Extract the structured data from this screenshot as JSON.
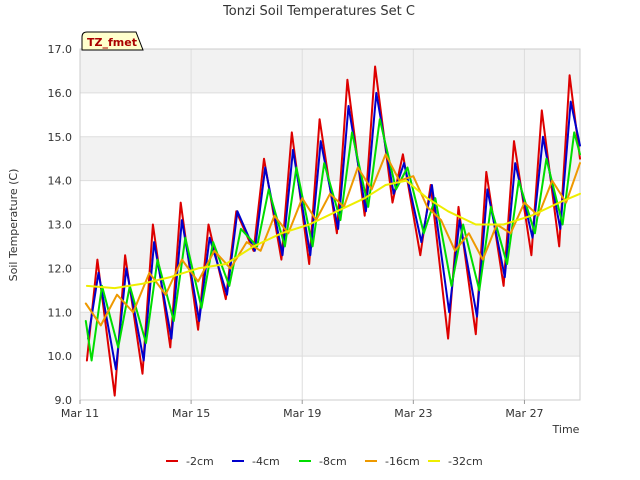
{
  "chart_data": {
    "type": "line",
    "title": "Tonzi Soil Temperatures Set C",
    "xlabel": "Time",
    "ylabel": "Soil Temperature (C)",
    "tag": "TZ_fmet",
    "xlim": [
      "2024-03-11",
      "2024-03-29"
    ],
    "ylim": [
      9.0,
      17.0
    ],
    "yticks": [
      9.0,
      10.0,
      11.0,
      12.0,
      13.0,
      14.0,
      15.0,
      16.0,
      17.0
    ],
    "xticks": [
      {
        "date": "2024-03-11",
        "label": "Mar 11"
      },
      {
        "date": "2024-03-15",
        "label": "Mar 15"
      },
      {
        "date": "2024-03-19",
        "label": "Mar 19"
      },
      {
        "date": "2024-03-23",
        "label": "Mar 23"
      },
      {
        "date": "2024-03-27",
        "label": "Mar 27"
      }
    ],
    "grid": true,
    "legend_position": "bottom",
    "series": [
      {
        "name": "-2cm",
        "color": "#dd0000",
        "points": [
          [
            "2024-03-11T06:00",
            9.9
          ],
          [
            "2024-03-11T15:00",
            12.2
          ],
          [
            "2024-03-12T06:00",
            9.1
          ],
          [
            "2024-03-12T15:00",
            12.3
          ],
          [
            "2024-03-13T06:00",
            9.6
          ],
          [
            "2024-03-13T15:00",
            13.0
          ],
          [
            "2024-03-14T06:00",
            10.2
          ],
          [
            "2024-03-14T15:00",
            13.5
          ],
          [
            "2024-03-15T06:00",
            10.6
          ],
          [
            "2024-03-15T15:00",
            13.0
          ],
          [
            "2024-03-16T06:00",
            11.3
          ],
          [
            "2024-03-16T15:00",
            13.3
          ],
          [
            "2024-03-17T06:00",
            12.4
          ],
          [
            "2024-03-17T15:00",
            14.5
          ],
          [
            "2024-03-18T06:00",
            12.2
          ],
          [
            "2024-03-18T15:00",
            15.1
          ],
          [
            "2024-03-19T06:00",
            12.1
          ],
          [
            "2024-03-19T15:00",
            15.4
          ],
          [
            "2024-03-20T06:00",
            12.8
          ],
          [
            "2024-03-20T15:00",
            16.3
          ],
          [
            "2024-03-21T06:00",
            13.2
          ],
          [
            "2024-03-21T15:00",
            16.6
          ],
          [
            "2024-03-22T06:00",
            13.5
          ],
          [
            "2024-03-22T15:00",
            14.6
          ],
          [
            "2024-03-23T06:00",
            12.3
          ],
          [
            "2024-03-23T15:00",
            13.9
          ],
          [
            "2024-03-24T06:00",
            10.4
          ],
          [
            "2024-03-24T15:00",
            13.4
          ],
          [
            "2024-03-25T06:00",
            10.5
          ],
          [
            "2024-03-25T15:00",
            14.2
          ],
          [
            "2024-03-26T06:00",
            11.6
          ],
          [
            "2024-03-26T15:00",
            14.9
          ],
          [
            "2024-03-27T06:00",
            12.3
          ],
          [
            "2024-03-27T15:00",
            15.6
          ],
          [
            "2024-03-28T06:00",
            12.5
          ],
          [
            "2024-03-28T15:00",
            16.4
          ],
          [
            "2024-03-29T00:00",
            14.5
          ]
        ]
      },
      {
        "name": "-4cm",
        "color": "#0000cc",
        "points": [
          [
            "2024-03-11T07:00",
            10.4
          ],
          [
            "2024-03-11T16:00",
            11.9
          ],
          [
            "2024-03-12T07:00",
            9.7
          ],
          [
            "2024-03-12T16:00",
            12.0
          ],
          [
            "2024-03-13T07:00",
            9.9
          ],
          [
            "2024-03-13T16:00",
            12.6
          ],
          [
            "2024-03-14T07:00",
            10.4
          ],
          [
            "2024-03-14T16:00",
            13.1
          ],
          [
            "2024-03-15T07:00",
            10.8
          ],
          [
            "2024-03-15T16:00",
            12.7
          ],
          [
            "2024-03-16T07:00",
            11.4
          ],
          [
            "2024-03-16T16:00",
            13.3
          ],
          [
            "2024-03-17T07:00",
            12.4
          ],
          [
            "2024-03-17T16:00",
            14.3
          ],
          [
            "2024-03-18T07:00",
            12.3
          ],
          [
            "2024-03-18T16:00",
            14.7
          ],
          [
            "2024-03-19T07:00",
            12.3
          ],
          [
            "2024-03-19T16:00",
            14.9
          ],
          [
            "2024-03-20T07:00",
            12.9
          ],
          [
            "2024-03-20T16:00",
            15.7
          ],
          [
            "2024-03-21T07:00",
            13.3
          ],
          [
            "2024-03-21T16:00",
            16.0
          ],
          [
            "2024-03-22T07:00",
            13.7
          ],
          [
            "2024-03-22T16:00",
            14.4
          ],
          [
            "2024-03-23T07:00",
            12.6
          ],
          [
            "2024-03-23T16:00",
            13.9
          ],
          [
            "2024-03-24T07:00",
            11.0
          ],
          [
            "2024-03-24T16:00",
            13.1
          ],
          [
            "2024-03-25T07:00",
            10.9
          ],
          [
            "2024-03-25T16:00",
            13.8
          ],
          [
            "2024-03-26T07:00",
            11.8
          ],
          [
            "2024-03-26T16:00",
            14.4
          ],
          [
            "2024-03-27T07:00",
            12.7
          ],
          [
            "2024-03-27T16:00",
            15.0
          ],
          [
            "2024-03-28T07:00",
            12.9
          ],
          [
            "2024-03-28T16:00",
            15.8
          ],
          [
            "2024-03-29T00:00",
            14.8
          ]
        ]
      },
      {
        "name": "-8cm",
        "color": "#00dd00",
        "points": [
          [
            "2024-03-11T05:00",
            10.8
          ],
          [
            "2024-03-11T10:00",
            9.9
          ],
          [
            "2024-03-11T19:00",
            11.6
          ],
          [
            "2024-03-12T09:00",
            10.2
          ],
          [
            "2024-03-12T19:00",
            11.6
          ],
          [
            "2024-03-13T09:00",
            10.3
          ],
          [
            "2024-03-13T19:00",
            12.2
          ],
          [
            "2024-03-14T09:00",
            10.8
          ],
          [
            "2024-03-14T19:00",
            12.7
          ],
          [
            "2024-03-15T09:00",
            11.1
          ],
          [
            "2024-03-15T19:00",
            12.6
          ],
          [
            "2024-03-16T09:00",
            11.6
          ],
          [
            "2024-03-16T19:00",
            12.9
          ],
          [
            "2024-03-17T09:00",
            12.5
          ],
          [
            "2024-03-17T19:00",
            13.8
          ],
          [
            "2024-03-18T09:00",
            12.5
          ],
          [
            "2024-03-18T19:00",
            14.3
          ],
          [
            "2024-03-19T09:00",
            12.5
          ],
          [
            "2024-03-19T19:00",
            14.4
          ],
          [
            "2024-03-20T09:00",
            13.1
          ],
          [
            "2024-03-20T19:00",
            15.1
          ],
          [
            "2024-03-21T09:00",
            13.4
          ],
          [
            "2024-03-21T19:00",
            15.4
          ],
          [
            "2024-03-22T09:00",
            13.8
          ],
          [
            "2024-03-22T19:00",
            14.3
          ],
          [
            "2024-03-23T09:00",
            12.8
          ],
          [
            "2024-03-23T19:00",
            13.6
          ],
          [
            "2024-03-24T09:00",
            11.6
          ],
          [
            "2024-03-24T19:00",
            13.0
          ],
          [
            "2024-03-25T09:00",
            11.5
          ],
          [
            "2024-03-25T19:00",
            13.4
          ],
          [
            "2024-03-26T09:00",
            12.1
          ],
          [
            "2024-03-26T19:00",
            14.0
          ],
          [
            "2024-03-27T09:00",
            12.8
          ],
          [
            "2024-03-27T19:00",
            14.5
          ],
          [
            "2024-03-28T09:00",
            13.0
          ],
          [
            "2024-03-28T19:00",
            15.1
          ],
          [
            "2024-03-29T00:00",
            14.6
          ]
        ]
      },
      {
        "name": "-16cm",
        "color": "#ee9900",
        "points": [
          [
            "2024-03-11T05:00",
            11.2
          ],
          [
            "2024-03-11T18:00",
            10.7
          ],
          [
            "2024-03-12T08:00",
            11.4
          ],
          [
            "2024-03-12T22:00",
            11.0
          ],
          [
            "2024-03-13T12:00",
            11.9
          ],
          [
            "2024-03-14T02:00",
            11.4
          ],
          [
            "2024-03-14T16:00",
            12.2
          ],
          [
            "2024-03-15T06:00",
            11.7
          ],
          [
            "2024-03-15T20:00",
            12.4
          ],
          [
            "2024-03-16T10:00",
            12.0
          ],
          [
            "2024-03-17T00:00",
            12.6
          ],
          [
            "2024-03-17T12:00",
            12.4
          ],
          [
            "2024-03-18T00:00",
            13.2
          ],
          [
            "2024-03-18T12:00",
            12.8
          ],
          [
            "2024-03-19T00:00",
            13.6
          ],
          [
            "2024-03-19T12:00",
            13.1
          ],
          [
            "2024-03-20T00:00",
            13.7
          ],
          [
            "2024-03-20T12:00",
            13.4
          ],
          [
            "2024-03-21T00:00",
            14.3
          ],
          [
            "2024-03-21T12:00",
            13.8
          ],
          [
            "2024-03-22T00:00",
            14.6
          ],
          [
            "2024-03-22T12:00",
            14.0
          ],
          [
            "2024-03-23T00:00",
            14.1
          ],
          [
            "2024-03-23T12:00",
            13.4
          ],
          [
            "2024-03-24T00:00",
            13.1
          ],
          [
            "2024-03-24T12:00",
            12.4
          ],
          [
            "2024-03-25T00:00",
            12.8
          ],
          [
            "2024-03-25T12:00",
            12.2
          ],
          [
            "2024-03-26T00:00",
            13.0
          ],
          [
            "2024-03-26T12:00",
            12.8
          ],
          [
            "2024-03-27T00:00",
            13.5
          ],
          [
            "2024-03-27T12:00",
            13.2
          ],
          [
            "2024-03-28T00:00",
            14.0
          ],
          [
            "2024-03-28T12:00",
            13.5
          ],
          [
            "2024-03-29T00:00",
            14.4
          ]
        ]
      },
      {
        "name": "-32cm",
        "color": "#eeee00",
        "points": [
          [
            "2024-03-11T06:00",
            11.6
          ],
          [
            "2024-03-12T06:00",
            11.55
          ],
          [
            "2024-03-13T06:00",
            11.65
          ],
          [
            "2024-03-14T06:00",
            11.8
          ],
          [
            "2024-03-15T06:00",
            12.0
          ],
          [
            "2024-03-16T06:00",
            12.1
          ],
          [
            "2024-03-17T06:00",
            12.5
          ],
          [
            "2024-03-18T06:00",
            12.8
          ],
          [
            "2024-03-19T06:00",
            13.0
          ],
          [
            "2024-03-20T06:00",
            13.3
          ],
          [
            "2024-03-21T06:00",
            13.6
          ],
          [
            "2024-03-22T00:00",
            13.9
          ],
          [
            "2024-03-22T18:00",
            14.0
          ],
          [
            "2024-03-23T12:00",
            13.6
          ],
          [
            "2024-03-24T06:00",
            13.3
          ],
          [
            "2024-03-25T06:00",
            13.0
          ],
          [
            "2024-03-26T06:00",
            13.0
          ],
          [
            "2024-03-27T06:00",
            13.2
          ],
          [
            "2024-03-28T06:00",
            13.5
          ],
          [
            "2024-03-29T00:00",
            13.7
          ]
        ]
      }
    ]
  }
}
